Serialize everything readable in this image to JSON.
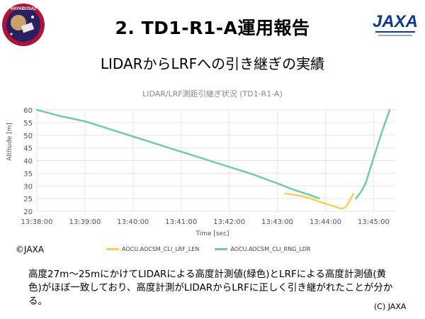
{
  "slide": {
    "title": "2. TD1-R1-A運用報告",
    "subtitle": "LIDARからLRFへの引き継ぎの実績",
    "logo_left_text": "HAYABUSA2",
    "logo_right_text": "JAXA",
    "credit_left": "©JAXA",
    "caption": "高度27m～25mにかけてLIDARによる高度計測値(緑色)とLRFによる高度計測値(黄色)がほぼ一致しており、高度計測がLIDARからLRFに正しく引き継がれたことが分かる。",
    "credit_right": "(C) JAXA"
  },
  "colors": {
    "lrf": "#f5cf5a",
    "lidar": "#6fcf97",
    "grid": "#e6e6e6",
    "title_gray": "#8a8a8a"
  },
  "chart_data": {
    "type": "line",
    "title": "LIDAR/LRF測距引継ぎ状況 (TD1-R1-A)",
    "xlabel": "Time [sec]",
    "ylabel": "Altitude [m]",
    "xlim": [
      "13:38:00",
      "13:45:00"
    ],
    "ylim": [
      20,
      60
    ],
    "y_ticks": [
      20,
      25,
      30,
      35,
      40,
      45,
      50,
      55,
      60
    ],
    "x_ticks": [
      "13:38:00",
      "13:39:00",
      "13:40:00",
      "13:41:00",
      "13:42:00",
      "13:43:00",
      "13:44:00",
      "13:45:00"
    ],
    "grid": true,
    "legend_position": "bottom",
    "series": [
      {
        "name": "AOCU.AOCSM_CLI_LRF_LEN",
        "color": "#f5cf5a",
        "points": [
          [
            "13:43:10",
            27.0
          ],
          [
            "13:43:20",
            26.5
          ],
          [
            "13:43:30",
            26.0
          ],
          [
            "13:43:40",
            25.2
          ],
          [
            "13:43:50",
            24.0
          ],
          [
            "13:44:00",
            23.0
          ],
          [
            "13:44:10",
            22.0
          ],
          [
            "13:44:20",
            21.0
          ],
          [
            "13:44:25",
            21.5
          ],
          [
            "13:44:30",
            24.0
          ],
          [
            "13:44:35",
            27.0
          ]
        ]
      },
      {
        "name": "AOCU.AOCSM_CLI_RNG_LDR",
        "color": "#6fcf97",
        "segments": [
          [
            [
              "13:38:00",
              60.0
            ],
            [
              "13:38:30",
              57.5
            ],
            [
              "13:39:00",
              55.5
            ],
            [
              "13:39:30",
              52.5
            ],
            [
              "13:40:00",
              49.5
            ],
            [
              "13:40:30",
              46.5
            ],
            [
              "13:41:00",
              43.5
            ],
            [
              "13:41:30",
              40.5
            ],
            [
              "13:42:00",
              37.5
            ],
            [
              "13:42:30",
              34.5
            ],
            [
              "13:43:00",
              31.0
            ],
            [
              "13:43:20",
              28.5
            ],
            [
              "13:43:40",
              26.5
            ],
            [
              "13:43:52",
              25.0
            ]
          ],
          [
            [
              "13:44:38",
              25.0
            ],
            [
              "13:44:45",
              28.0
            ],
            [
              "13:44:50",
              31.0
            ],
            [
              "13:44:55",
              36.0
            ],
            [
              "13:45:00",
              41.0
            ],
            [
              "13:45:05",
              46.0
            ],
            [
              "13:45:10",
              51.0
            ],
            [
              "13:45:15",
              55.5
            ],
            [
              "13:45:20",
              60.0
            ]
          ]
        ]
      }
    ]
  }
}
